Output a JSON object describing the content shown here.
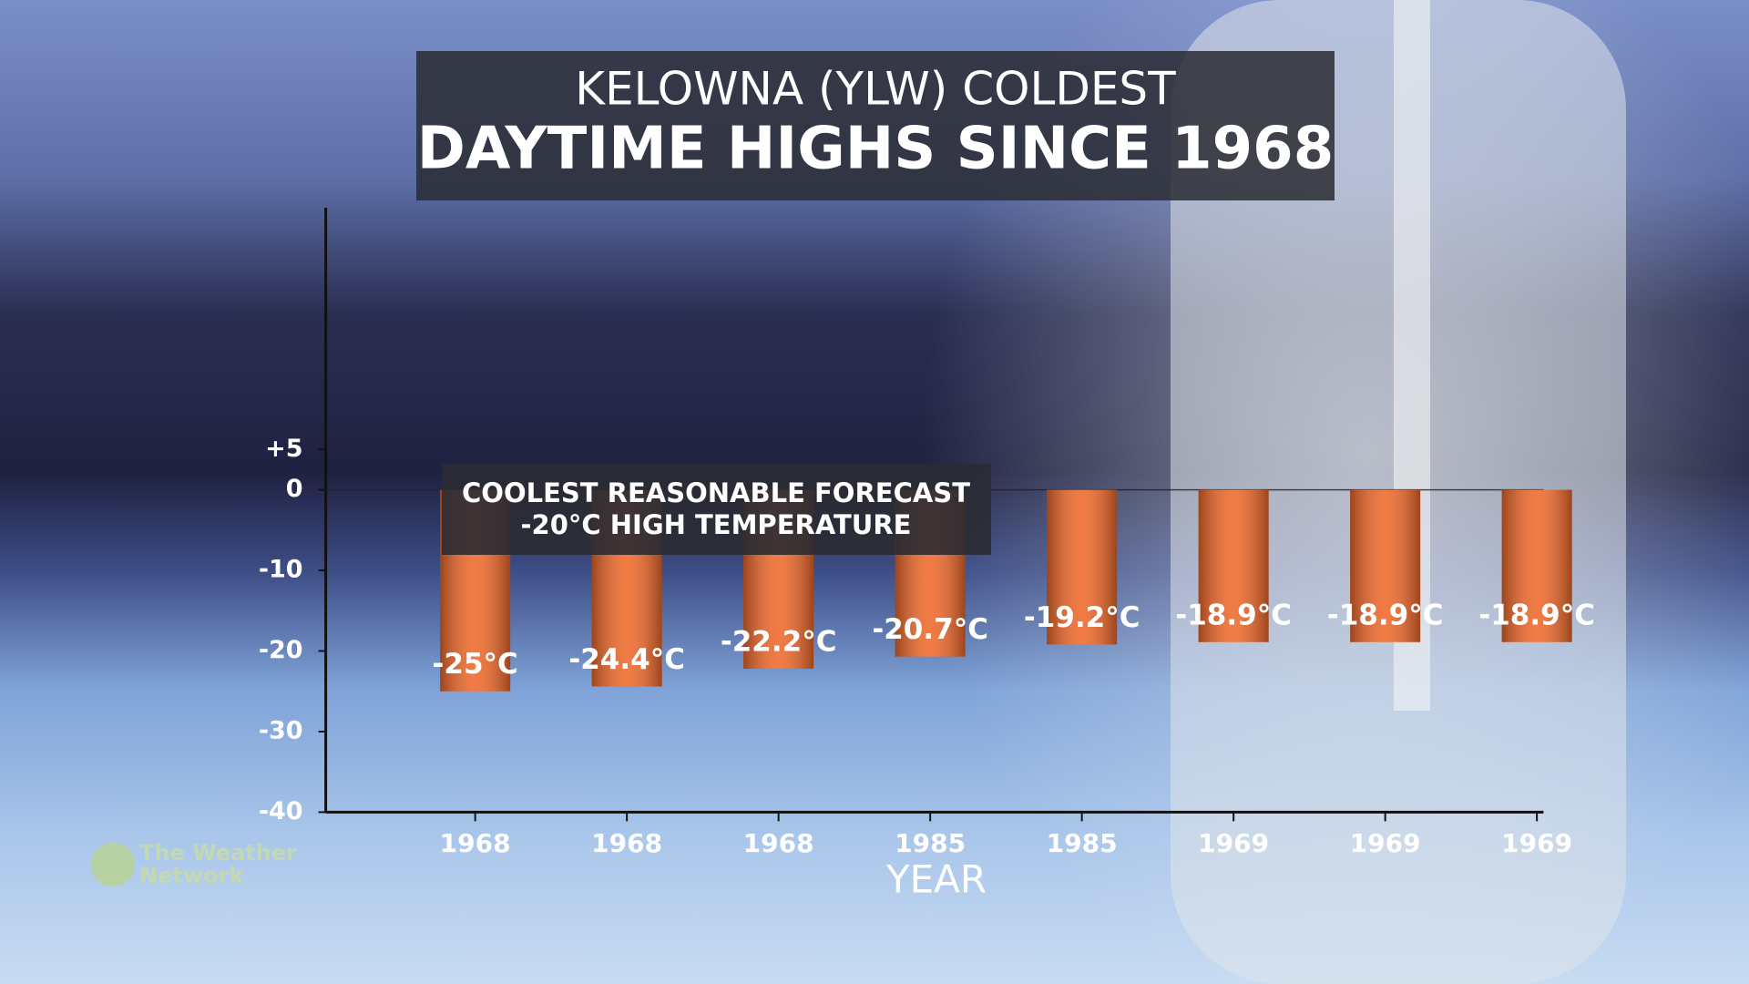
{
  "chart_data": {
    "type": "bar",
    "title": "KELOWNA (YLW) COLDEST",
    "subtitle": "DAYTIME HIGHS SINCE 1968",
    "annotation": [
      "COOLEST REASONABLE FORECAST",
      "-20°C HIGH TEMPERATURE"
    ],
    "x_label": "YEAR",
    "logo": [
      "The Weather",
      "Network"
    ],
    "categories": [
      "1968",
      "1968",
      "1968",
      "1985",
      "1985",
      "1969",
      "1969",
      "1969"
    ],
    "values": [
      -25,
      -24.4,
      -22.2,
      -20.7,
      -19.2,
      -18.9,
      -18.9,
      -18.9
    ],
    "value_labels": [
      "-25°C",
      "-24.4°C",
      "-22.2°C",
      "-20.7°C",
      "-19.2°C",
      "-18.9°C",
      "-18.9°C",
      "-18.9°C"
    ],
    "color": "#f0692a",
    "ylim": [
      -40,
      35
    ],
    "yticks": [
      {
        "value": 5,
        "label": "+5"
      },
      0,
      -10,
      -20,
      -30,
      -40
    ],
    "zero_line": true
  }
}
